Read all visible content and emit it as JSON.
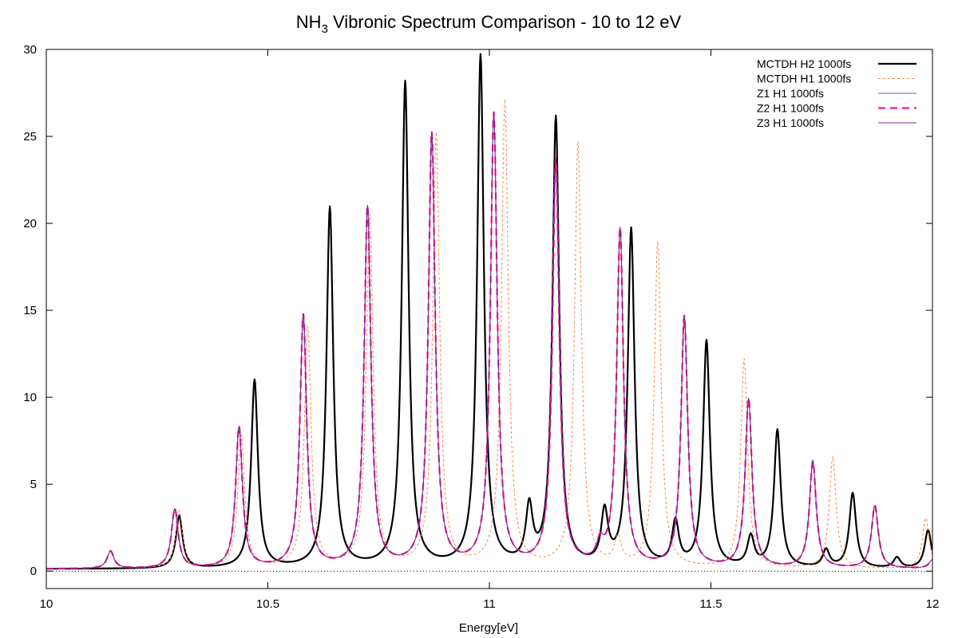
{
  "chart_data": {
    "type": "line",
    "title": {
      "prefix": "NH",
      "subscript": "3",
      "suffix": " Vibronic Spectrum Comparison - 10 to 12 eV"
    },
    "xlabel": "Energy[eV]",
    "ylabel": "",
    "xlim": [
      10,
      12
    ],
    "ylim": [
      -1,
      30
    ],
    "xticks": [
      10,
      10.5,
      11,
      11.5,
      12
    ],
    "xtick_labels": [
      "10",
      "10.5",
      "11",
      "11.5",
      "12"
    ],
    "yticks": [
      0,
      5,
      10,
      15,
      20,
      25,
      30
    ],
    "ytick_labels": [
      "0",
      "5",
      "10",
      "15",
      "20",
      "25",
      "30"
    ],
    "grid": false,
    "zero_line": true,
    "legend_position": "top-right",
    "baseline": 0.12,
    "series": [
      {
        "name": "MCTDH H2 1000fs",
        "color": "#000000",
        "style": "solid-thick",
        "peaks": [
          {
            "x": 10.3,
            "y": 3.0
          },
          {
            "x": 10.47,
            "y": 10.8
          },
          {
            "x": 10.64,
            "y": 20.7
          },
          {
            "x": 10.81,
            "y": 27.9
          },
          {
            "x": 10.98,
            "y": 29.4
          },
          {
            "x": 11.09,
            "y": 3.2
          },
          {
            "x": 11.15,
            "y": 25.8
          },
          {
            "x": 11.26,
            "y": 3.0
          },
          {
            "x": 11.32,
            "y": 19.4
          },
          {
            "x": 11.42,
            "y": 2.5
          },
          {
            "x": 11.49,
            "y": 13.0
          },
          {
            "x": 11.59,
            "y": 1.7
          },
          {
            "x": 11.65,
            "y": 7.9
          },
          {
            "x": 11.76,
            "y": 1.0
          },
          {
            "x": 11.82,
            "y": 4.3
          },
          {
            "x": 11.92,
            "y": 0.6
          },
          {
            "x": 11.99,
            "y": 2.2
          }
        ]
      },
      {
        "name": "MCTDH H1 1000fs",
        "color": "#ff7f3f",
        "style": "dotted",
        "peaks": [
          {
            "x": 10.145,
            "y": 1.0
          },
          {
            "x": 10.3,
            "y": 3.3
          },
          {
            "x": 10.44,
            "y": 7.7
          },
          {
            "x": 10.59,
            "y": 13.8
          },
          {
            "x": 10.73,
            "y": 20.2
          },
          {
            "x": 10.88,
            "y": 24.9
          },
          {
            "x": 11.035,
            "y": 26.8
          },
          {
            "x": 11.2,
            "y": 24.4
          },
          {
            "x": 11.29,
            "y": 1.5
          },
          {
            "x": 11.38,
            "y": 18.7
          },
          {
            "x": 11.575,
            "y": 12.0
          },
          {
            "x": 11.775,
            "y": 6.4
          },
          {
            "x": 11.985,
            "y": 2.9
          }
        ]
      },
      {
        "name": "Z1 H1 1000fs",
        "color": "#4f6fb0",
        "style": "solid-thin",
        "peaks": [
          {
            "x": 10.145,
            "y": 1.0
          },
          {
            "x": 10.29,
            "y": 3.4
          },
          {
            "x": 10.435,
            "y": 8.1
          },
          {
            "x": 10.58,
            "y": 14.5
          },
          {
            "x": 10.725,
            "y": 20.7
          },
          {
            "x": 10.87,
            "y": 24.9
          },
          {
            "x": 11.01,
            "y": 26.0
          },
          {
            "x": 11.15,
            "y": 23.4
          },
          {
            "x": 11.25,
            "y": 1.0
          },
          {
            "x": 11.295,
            "y": 19.4
          },
          {
            "x": 11.44,
            "y": 14.4
          },
          {
            "x": 11.585,
            "y": 9.7
          },
          {
            "x": 11.73,
            "y": 6.2
          },
          {
            "x": 11.87,
            "y": 3.6
          },
          {
            "x": 12.0,
            "y": 0.5
          }
        ]
      },
      {
        "name": "Z2 H1 1000fs",
        "color": "#ff1493",
        "style": "dashed",
        "peaks": [
          {
            "x": 10.145,
            "y": 1.0
          },
          {
            "x": 10.29,
            "y": 3.4
          },
          {
            "x": 10.435,
            "y": 8.1
          },
          {
            "x": 10.58,
            "y": 14.5
          },
          {
            "x": 10.725,
            "y": 20.7
          },
          {
            "x": 10.87,
            "y": 24.9
          },
          {
            "x": 11.01,
            "y": 26.0
          },
          {
            "x": 11.15,
            "y": 23.4
          },
          {
            "x": 11.25,
            "y": 1.0
          },
          {
            "x": 11.295,
            "y": 19.4
          },
          {
            "x": 11.44,
            "y": 14.4
          },
          {
            "x": 11.585,
            "y": 9.7
          },
          {
            "x": 11.73,
            "y": 6.1
          },
          {
            "x": 11.87,
            "y": 3.6
          },
          {
            "x": 12.0,
            "y": 0.5
          }
        ]
      },
      {
        "name": "Z3 H1 1000fs",
        "color": "#7a2a8a",
        "style": "solid-thin",
        "peaks": [
          {
            "x": 10.145,
            "y": 1.0
          },
          {
            "x": 10.29,
            "y": 3.4
          },
          {
            "x": 10.435,
            "y": 8.1
          },
          {
            "x": 10.58,
            "y": 14.5
          },
          {
            "x": 10.725,
            "y": 20.7
          },
          {
            "x": 10.87,
            "y": 24.9
          },
          {
            "x": 11.01,
            "y": 26.0
          },
          {
            "x": 11.15,
            "y": 23.4
          },
          {
            "x": 11.25,
            "y": 1.0
          },
          {
            "x": 11.295,
            "y": 19.4
          },
          {
            "x": 11.44,
            "y": 14.4
          },
          {
            "x": 11.585,
            "y": 9.7
          },
          {
            "x": 11.73,
            "y": 6.1
          },
          {
            "x": 11.87,
            "y": 3.6
          },
          {
            "x": 12.0,
            "y": 0.5
          }
        ]
      }
    ]
  }
}
